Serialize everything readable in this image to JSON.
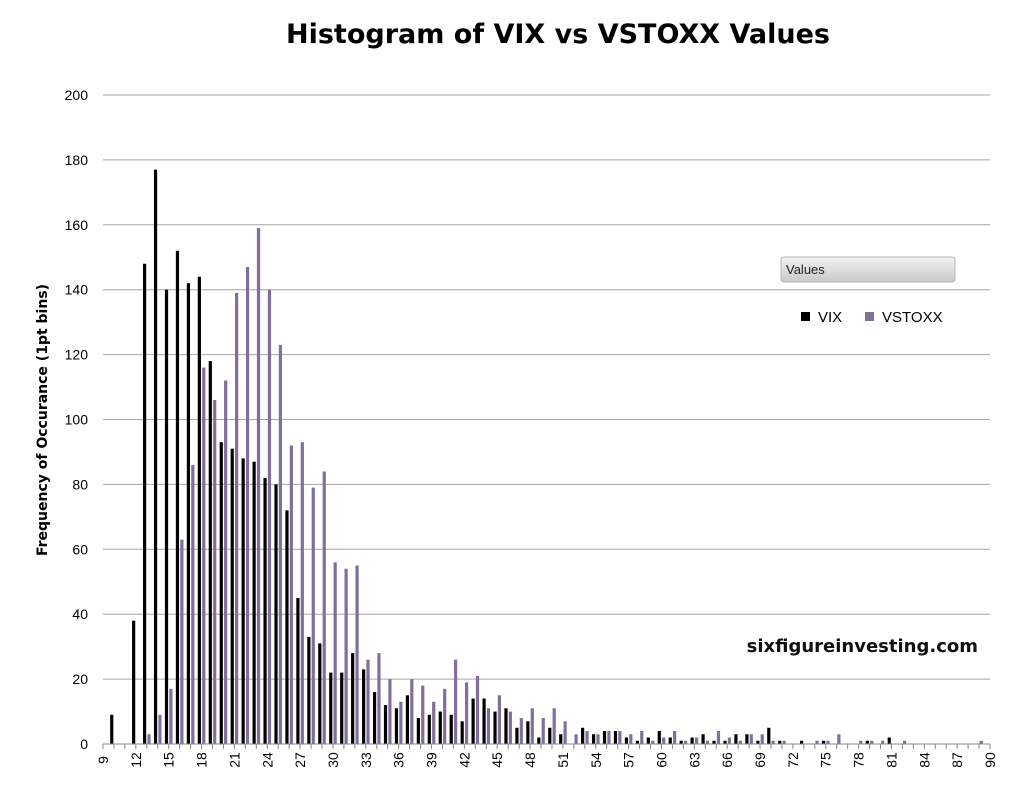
{
  "chart_data": {
    "type": "bar",
    "title": "Histogram of VIX vs VSTOXX Values",
    "xlabel": "",
    "ylabel": "Frequency of Occurance (1pt bins)",
    "xlim": [
      9,
      90
    ],
    "ylim": [
      0,
      200
    ],
    "x_ticks": [
      9,
      12,
      15,
      18,
      21,
      24,
      27,
      30,
      33,
      36,
      39,
      42,
      45,
      48,
      51,
      54,
      57,
      60,
      63,
      66,
      69,
      72,
      75,
      78,
      81,
      84,
      87,
      90
    ],
    "y_ticks": [
      0,
      20,
      40,
      60,
      80,
      100,
      120,
      140,
      160,
      180,
      200
    ],
    "grid": "horizontal",
    "legend_position": "right",
    "legend_title": "Values",
    "bins": [
      10,
      11,
      12,
      13,
      14,
      15,
      16,
      17,
      18,
      19,
      20,
      21,
      22,
      23,
      24,
      25,
      26,
      27,
      28,
      29,
      30,
      31,
      32,
      33,
      34,
      35,
      36,
      37,
      38,
      39,
      40,
      41,
      42,
      43,
      44,
      45,
      46,
      47,
      48,
      49,
      50,
      51,
      52,
      53,
      54,
      55,
      56,
      57,
      58,
      59,
      60,
      61,
      62,
      63,
      64,
      65,
      66,
      67,
      68,
      69,
      70,
      71,
      72,
      73,
      74,
      75,
      76,
      77,
      78,
      79,
      80,
      81,
      82,
      83,
      84,
      85,
      86,
      87,
      88,
      89
    ],
    "series": [
      {
        "name": "VIX",
        "color": "#000000",
        "values": [
          9,
          0,
          38,
          148,
          177,
          140,
          152,
          142,
          144,
          118,
          93,
          91,
          88,
          87,
          82,
          80,
          72,
          45,
          33,
          31,
          22,
          22,
          28,
          23,
          16,
          12,
          11,
          15,
          8,
          9,
          10,
          9,
          7,
          14,
          14,
          10,
          11,
          5,
          7,
          2,
          5,
          3,
          0,
          5,
          3,
          4,
          4,
          2,
          1,
          2,
          4,
          2,
          1,
          2,
          3,
          1,
          1,
          3,
          3,
          1,
          5,
          1,
          0,
          1,
          0,
          1,
          0,
          0,
          0,
          1,
          0,
          2,
          0,
          0,
          0,
          0,
          0,
          0,
          0,
          0
        ]
      },
      {
        "name": "VSTOXX",
        "color": "#7f6f9a",
        "values": [
          0,
          0,
          0,
          3,
          9,
          17,
          63,
          86,
          116,
          106,
          112,
          139,
          147,
          159,
          140,
          123,
          92,
          93,
          79,
          84,
          56,
          54,
          55,
          26,
          28,
          20,
          13,
          20,
          18,
          13,
          17,
          26,
          19,
          21,
          11,
          15,
          10,
          8,
          11,
          8,
          11,
          7,
          3,
          4,
          3,
          4,
          4,
          3,
          4,
          1,
          2,
          4,
          1,
          2,
          1,
          4,
          2,
          1,
          3,
          3,
          1,
          1,
          0,
          0,
          1,
          1,
          3,
          0,
          1,
          1,
          1,
          0,
          1,
          0,
          0,
          0,
          0,
          0,
          0,
          1
        ]
      }
    ]
  },
  "watermark": "sixfigureinvesting.com"
}
